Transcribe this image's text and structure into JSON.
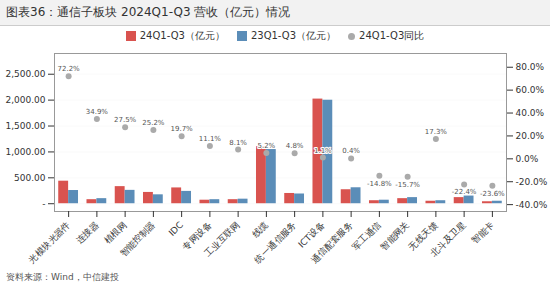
{
  "chart_data": {
    "type": "bar",
    "title": "图表36：通信子板块 2024Q1-Q3 营收（亿元）情况",
    "annotations": [
      "资料来源：Wind，中信建投"
    ],
    "categories": [
      "光模块光器件",
      "连接器",
      "植根网",
      "智能控制器",
      "IDC",
      "专网设备",
      "工业互联网",
      "线缆",
      "统一通信服务",
      "ICT设备",
      "通信配套服务",
      "军工通信",
      "智能网关",
      "无线天馈",
      "北斗及卫星",
      "智能卡"
    ],
    "series": [
      {
        "name": "24Q1-Q3（亿元）",
        "color": "#D9534F",
        "type": "bar",
        "values": [
          435,
          78,
          330,
          218,
          305,
          68,
          78,
          1100,
          198,
          2020,
          270,
          58,
          98,
          48,
          118,
          38
        ]
      },
      {
        "name": "23Q1-Q3（亿元）",
        "color": "#5B8DB8",
        "type": "bar",
        "values": [
          255,
          98,
          258,
          172,
          238,
          78,
          88,
          1046,
          188,
          1998,
          308,
          68,
          118,
          58,
          148,
          48
        ]
      },
      {
        "name": "24Q1-Q3同比",
        "color": "#AAAAAA",
        "type": "scatter",
        "axis": "y2",
        "data_labels": true,
        "values": [
          0.722,
          0.349,
          0.275,
          0.252,
          0.197,
          0.111,
          0.081,
          0.052,
          0.048,
          0.011,
          0.004,
          -0.148,
          -0.157,
          0.173,
          -0.224,
          -0.236
        ],
        "value_labels": [
          "72.2%",
          "34.9%",
          "27.5%",
          "25.2%",
          "19.7%",
          "11.1%",
          "8.1%",
          "5.2%",
          "4.8%",
          "1.1%",
          "0.4%",
          "-14.8%",
          "-15.7%",
          "17.3%",
          "-22.4%",
          "-23.6%"
        ]
      }
    ],
    "ylim": [
      -150,
      2900
    ],
    "yticks": [
      {
        "value": 0,
        "label": "-"
      },
      {
        "value": 500,
        "label": "500.00"
      },
      {
        "value": 1000,
        "label": "1,000.00"
      },
      {
        "value": 1500,
        "label": "1,500.00"
      },
      {
        "value": 2000,
        "label": "2,000.00"
      },
      {
        "value": 2500,
        "label": "2,500.00"
      }
    ],
    "y2lim": [
      -0.46,
      0.92
    ],
    "y2ticks": [
      {
        "value": -0.4,
        "label": "-40.0%"
      },
      {
        "value": -0.2,
        "label": "-20.0%"
      },
      {
        "value": 0.0,
        "label": "0.0%"
      },
      {
        "value": 0.2,
        "label": "20.0%"
      },
      {
        "value": 0.4,
        "label": "40.0%"
      },
      {
        "value": 0.6,
        "label": "60.0%"
      },
      {
        "value": 0.8,
        "label": "80.0%"
      }
    ],
    "grid": true,
    "legend": "top"
  }
}
